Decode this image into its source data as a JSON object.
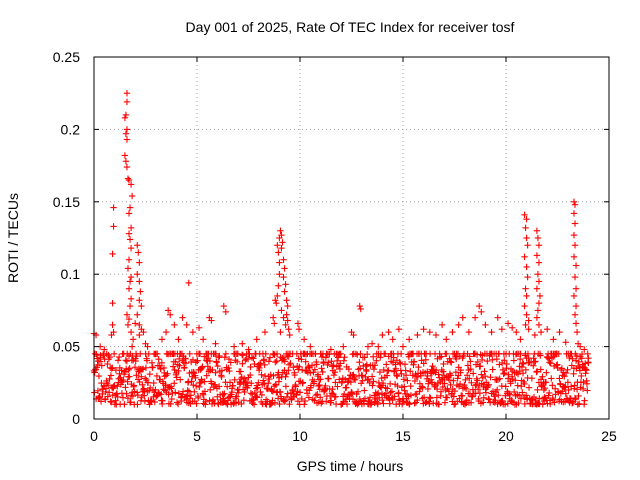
{
  "chart_data": {
    "type": "scatter",
    "title": "Day 001 of 2025, Rate Of TEC Index for receiver tosf",
    "xlabel": "GPS time / hours",
    "ylabel": "ROTI / TECUs",
    "xlim": [
      0,
      25
    ],
    "ylim": [
      0,
      0.25
    ],
    "x_ticks": [
      0,
      5,
      10,
      15,
      20,
      25
    ],
    "x_tick_labels": [
      "0",
      "5",
      "10",
      "15",
      "20",
      "25"
    ],
    "y_ticks": [
      0,
      0.05,
      0.1,
      0.15,
      0.2,
      0.25
    ],
    "y_tick_labels": [
      "0",
      "0.05",
      "0.1",
      "0.15",
      "0.2",
      "0.25"
    ],
    "grid": true,
    "marker": "+",
    "series": [
      {
        "name": "ROTI",
        "color": "#ff0000",
        "baseline": {
          "x_range": [
            0,
            24
          ],
          "y_range": [
            0.004,
            0.045
          ],
          "count": 1400
        },
        "points": [
          [
            0.0,
            0.059
          ],
          [
            0.1,
            0.058
          ],
          [
            0.3,
            0.05
          ],
          [
            0.5,
            0.048
          ],
          [
            0.9,
            0.065
          ],
          [
            0.95,
            0.06
          ],
          [
            0.85,
            0.058
          ],
          [
            0.95,
            0.146
          ],
          [
            0.95,
            0.133
          ],
          [
            0.9,
            0.114
          ],
          [
            0.9,
            0.08
          ],
          [
            1.6,
            0.225
          ],
          [
            1.6,
            0.219
          ],
          [
            1.55,
            0.21
          ],
          [
            1.5,
            0.208
          ],
          [
            1.6,
            0.2
          ],
          [
            1.55,
            0.197
          ],
          [
            1.6,
            0.193
          ],
          [
            1.5,
            0.182
          ],
          [
            1.55,
            0.178
          ],
          [
            1.6,
            0.174
          ],
          [
            1.65,
            0.166
          ],
          [
            1.7,
            0.165
          ],
          [
            1.8,
            0.162
          ],
          [
            1.85,
            0.154
          ],
          [
            1.75,
            0.146
          ],
          [
            1.7,
            0.142
          ],
          [
            1.8,
            0.132
          ],
          [
            1.7,
            0.128
          ],
          [
            1.75,
            0.124
          ],
          [
            1.8,
            0.118
          ],
          [
            1.7,
            0.11
          ],
          [
            1.65,
            0.104
          ],
          [
            1.8,
            0.098
          ],
          [
            1.75,
            0.095
          ],
          [
            1.7,
            0.09
          ],
          [
            1.8,
            0.083
          ],
          [
            1.75,
            0.078
          ],
          [
            1.6,
            0.072
          ],
          [
            1.7,
            0.069
          ],
          [
            1.65,
            0.065
          ],
          [
            1.8,
            0.06
          ],
          [
            1.9,
            0.055
          ],
          [
            2.0,
            0.066
          ],
          [
            1.85,
            0.05
          ],
          [
            2.1,
            0.12
          ],
          [
            2.15,
            0.115
          ],
          [
            2.2,
            0.108
          ],
          [
            2.1,
            0.1
          ],
          [
            2.2,
            0.095
          ],
          [
            2.25,
            0.088
          ],
          [
            2.2,
            0.082
          ],
          [
            2.3,
            0.078
          ],
          [
            2.1,
            0.072
          ],
          [
            2.2,
            0.065
          ],
          [
            2.3,
            0.062
          ],
          [
            2.4,
            0.06
          ],
          [
            2.2,
            0.058
          ],
          [
            2.5,
            0.052
          ],
          [
            2.6,
            0.05
          ],
          [
            3.6,
            0.075
          ],
          [
            3.7,
            0.072
          ],
          [
            3.9,
            0.065
          ],
          [
            3.3,
            0.055
          ],
          [
            3.5,
            0.06
          ],
          [
            4.1,
            0.055
          ],
          [
            4.3,
            0.07
          ],
          [
            4.5,
            0.065
          ],
          [
            4.6,
            0.094
          ],
          [
            4.8,
            0.06
          ],
          [
            5.1,
            0.063
          ],
          [
            5.3,
            0.055
          ],
          [
            5.6,
            0.07
          ],
          [
            5.7,
            0.068
          ],
          [
            5.9,
            0.052
          ],
          [
            6.3,
            0.078
          ],
          [
            6.4,
            0.074
          ],
          [
            6.8,
            0.05
          ],
          [
            7.2,
            0.052
          ],
          [
            7.5,
            0.048
          ],
          [
            7.9,
            0.055
          ],
          [
            8.3,
            0.06
          ],
          [
            8.7,
            0.07
          ],
          [
            8.8,
            0.082
          ],
          [
            8.9,
            0.085
          ],
          [
            8.85,
            0.08
          ],
          [
            8.75,
            0.066
          ],
          [
            8.95,
            0.092
          ],
          [
            9.0,
            0.1
          ],
          [
            9.0,
            0.108
          ],
          [
            8.95,
            0.115
          ],
          [
            8.9,
            0.12
          ],
          [
            9.0,
            0.125
          ],
          [
            9.05,
            0.13
          ],
          [
            9.1,
            0.127
          ],
          [
            9.15,
            0.122
          ],
          [
            9.1,
            0.118
          ],
          [
            9.2,
            0.11
          ],
          [
            9.25,
            0.104
          ],
          [
            9.2,
            0.098
          ],
          [
            9.3,
            0.093
          ],
          [
            9.25,
            0.088
          ],
          [
            9.35,
            0.082
          ],
          [
            9.4,
            0.078
          ],
          [
            9.35,
            0.072
          ],
          [
            9.4,
            0.068
          ],
          [
            9.45,
            0.062
          ],
          [
            9.5,
            0.058
          ],
          [
            9.1,
            0.075
          ],
          [
            9.2,
            0.07
          ],
          [
            9.3,
            0.065
          ],
          [
            9.05,
            0.06
          ],
          [
            9.9,
            0.066
          ],
          [
            9.95,
            0.062
          ],
          [
            10.2,
            0.055
          ],
          [
            10.5,
            0.05
          ],
          [
            11.0,
            0.045
          ],
          [
            11.5,
            0.048
          ],
          [
            12.1,
            0.05
          ],
          [
            12.5,
            0.06
          ],
          [
            12.6,
            0.058
          ],
          [
            12.9,
            0.078
          ],
          [
            12.95,
            0.076
          ],
          [
            13.3,
            0.05
          ],
          [
            13.5,
            0.052
          ],
          [
            13.8,
            0.05
          ],
          [
            14.0,
            0.058
          ],
          [
            14.3,
            0.06
          ],
          [
            14.5,
            0.055
          ],
          [
            14.8,
            0.062
          ],
          [
            15.0,
            0.05
          ],
          [
            15.3,
            0.055
          ],
          [
            15.7,
            0.058
          ],
          [
            16.0,
            0.062
          ],
          [
            16.3,
            0.06
          ],
          [
            16.6,
            0.058
          ],
          [
            16.9,
            0.065
          ],
          [
            17.1,
            0.055
          ],
          [
            17.4,
            0.06
          ],
          [
            17.7,
            0.065
          ],
          [
            17.9,
            0.07
          ],
          [
            18.2,
            0.06
          ],
          [
            18.5,
            0.07
          ],
          [
            18.7,
            0.078
          ],
          [
            18.8,
            0.074
          ],
          [
            19.0,
            0.065
          ],
          [
            19.3,
            0.06
          ],
          [
            19.6,
            0.07
          ],
          [
            19.8,
            0.062
          ],
          [
            20.1,
            0.066
          ],
          [
            20.3,
            0.063
          ],
          [
            20.5,
            0.06
          ],
          [
            20.7,
            0.055
          ],
          [
            20.9,
            0.141
          ],
          [
            21.0,
            0.138
          ],
          [
            20.95,
            0.132
          ],
          [
            21.0,
            0.125
          ],
          [
            21.05,
            0.12
          ],
          [
            20.9,
            0.112
          ],
          [
            21.0,
            0.105
          ],
          [
            21.05,
            0.098
          ],
          [
            20.95,
            0.09
          ],
          [
            21.0,
            0.085
          ],
          [
            20.9,
            0.078
          ],
          [
            21.0,
            0.072
          ],
          [
            21.1,
            0.068
          ],
          [
            20.95,
            0.065
          ],
          [
            21.1,
            0.062
          ],
          [
            21.5,
            0.13
          ],
          [
            21.55,
            0.125
          ],
          [
            21.6,
            0.12
          ],
          [
            21.5,
            0.113
          ],
          [
            21.6,
            0.108
          ],
          [
            21.55,
            0.1
          ],
          [
            21.6,
            0.095
          ],
          [
            21.5,
            0.09
          ],
          [
            21.65,
            0.085
          ],
          [
            21.6,
            0.08
          ],
          [
            21.55,
            0.075
          ],
          [
            21.5,
            0.07
          ],
          [
            21.6,
            0.065
          ],
          [
            21.7,
            0.06
          ],
          [
            21.4,
            0.058
          ],
          [
            22.0,
            0.062
          ],
          [
            22.3,
            0.055
          ],
          [
            22.6,
            0.06
          ],
          [
            22.9,
            0.053
          ],
          [
            23.3,
            0.15
          ],
          [
            23.35,
            0.148
          ],
          [
            23.3,
            0.142
          ],
          [
            23.35,
            0.135
          ],
          [
            23.3,
            0.127
          ],
          [
            23.35,
            0.12
          ],
          [
            23.3,
            0.112
          ],
          [
            23.4,
            0.106
          ],
          [
            23.35,
            0.098
          ],
          [
            23.4,
            0.09
          ],
          [
            23.3,
            0.085
          ],
          [
            23.4,
            0.078
          ],
          [
            23.35,
            0.072
          ],
          [
            23.4,
            0.066
          ],
          [
            23.45,
            0.06
          ],
          [
            23.5,
            0.052
          ],
          [
            23.6,
            0.05
          ],
          [
            23.8,
            0.048
          ],
          [
            24.0,
            0.042
          ]
        ]
      }
    ]
  }
}
